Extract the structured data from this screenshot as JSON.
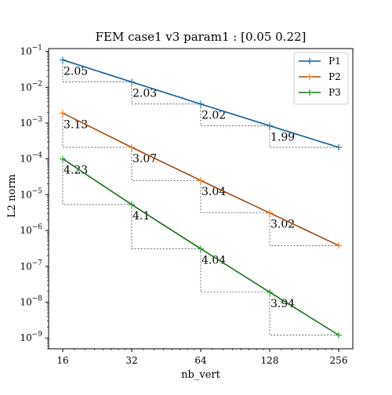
{
  "chart_data": {
    "type": "line",
    "title": "FEM case1 v3 param1 :  [0.05 0.22]",
    "xlabel": "nb_vert",
    "ylabel": "L2 norm",
    "x_scale": "log2",
    "y_scale": "log10",
    "x": [
      16,
      32,
      64,
      128,
      256
    ],
    "xticks": [
      "16",
      "32",
      "64",
      "128",
      "256"
    ],
    "ylim": [
      5e-10,
      0.12
    ],
    "yticks": [
      {
        "value": 0.1,
        "base": "10",
        "exp": "−1"
      },
      {
        "value": 0.01,
        "base": "10",
        "exp": "−2"
      },
      {
        "value": 0.001,
        "base": "10",
        "exp": "−3"
      },
      {
        "value": 0.0001,
        "base": "10",
        "exp": "−4"
      },
      {
        "value": 1e-05,
        "base": "10",
        "exp": "−5"
      },
      {
        "value": 1e-06,
        "base": "10",
        "exp": "−6"
      },
      {
        "value": 1e-07,
        "base": "10",
        "exp": "−7"
      },
      {
        "value": 1e-08,
        "base": "10",
        "exp": "−8"
      },
      {
        "value": 1e-09,
        "base": "10",
        "exp": "−9"
      }
    ],
    "grid": false,
    "legend_position": "top-right",
    "series": [
      {
        "name": "P1",
        "color": "#0d5a94",
        "marker_color": "#1f77b4",
        "values": [
          0.058,
          0.014,
          0.0034,
          0.00084,
          0.00021
        ],
        "slopes": [
          "2.05",
          "2.03",
          "2.02",
          "1.99"
        ]
      },
      {
        "name": "P2",
        "color": "#a04a10",
        "marker_color": "#ff7f0e",
        "values": [
          0.0019,
          0.00021,
          2.5e-05,
          3.1e-06,
          3.8e-07
        ],
        "slopes": [
          "3.13",
          "3.07",
          "3.04",
          "3.02"
        ]
      },
      {
        "name": "P3",
        "color": "#1a6e1a",
        "marker_color": "#2ca02c",
        "values": [
          0.0001,
          5.3e-06,
          3.1e-07,
          1.9e-08,
          1.2e-09
        ],
        "slopes": [
          "4.23",
          "4.1",
          "4.04",
          "3.94"
        ]
      }
    ]
  }
}
